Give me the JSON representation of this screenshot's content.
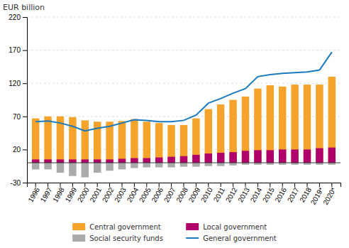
{
  "chart_data": {
    "type": "bar",
    "categories": [
      "1996",
      "1997",
      "1998",
      "1999",
      "2000",
      "2001",
      "2002",
      "2003",
      "2004",
      "2005",
      "2006",
      "2007",
      "2008",
      "2009",
      "2010",
      "2011",
      "2012",
      "2013",
      "2014",
      "2015",
      "2016",
      "2017",
      "2018",
      "2019*",
      "2020*"
    ],
    "series": [
      {
        "name": "Central government",
        "color": "#f5a32a",
        "values": [
          67,
          70,
          70,
          69,
          64,
          62,
          62,
          63,
          66,
          62,
          60,
          57,
          57,
          67,
          81,
          88,
          95,
          100,
          112,
          117,
          115,
          118,
          118,
          118,
          130
        ]
      },
      {
        "name": "Local government",
        "color": "#b0006b",
        "values": [
          5,
          5,
          5,
          5,
          5,
          5,
          5,
          6,
          7,
          7,
          8,
          9,
          10,
          12,
          14,
          15,
          16,
          18,
          19,
          19,
          20,
          20,
          20,
          22,
          23
        ]
      },
      {
        "name": "Social security funds",
        "color": "#aaaaaa",
        "values": [
          -10,
          -10,
          -15,
          -20,
          -22,
          -15,
          -12,
          -10,
          -8,
          -7,
          -7,
          -7,
          -6,
          -6,
          -5,
          -5,
          -4,
          -3,
          -3,
          -3,
          -3,
          -3,
          -3,
          -3,
          -3
        ]
      },
      {
        "name": "General government",
        "type": "line",
        "color": "#1a7abf",
        "values": [
          62,
          63,
          60,
          55,
          48,
          52,
          55,
          60,
          65,
          64,
          62,
          62,
          64,
          72,
          90,
          97,
          105,
          112,
          130,
          133,
          135,
          136,
          137,
          140,
          167
        ]
      }
    ],
    "ylabel": "EUR billion",
    "ylim": [
      -30,
      220
    ],
    "yticks": [
      -30,
      20,
      70,
      120,
      170,
      220
    ],
    "grid": true,
    "stacked": false,
    "legend": "bottom"
  }
}
